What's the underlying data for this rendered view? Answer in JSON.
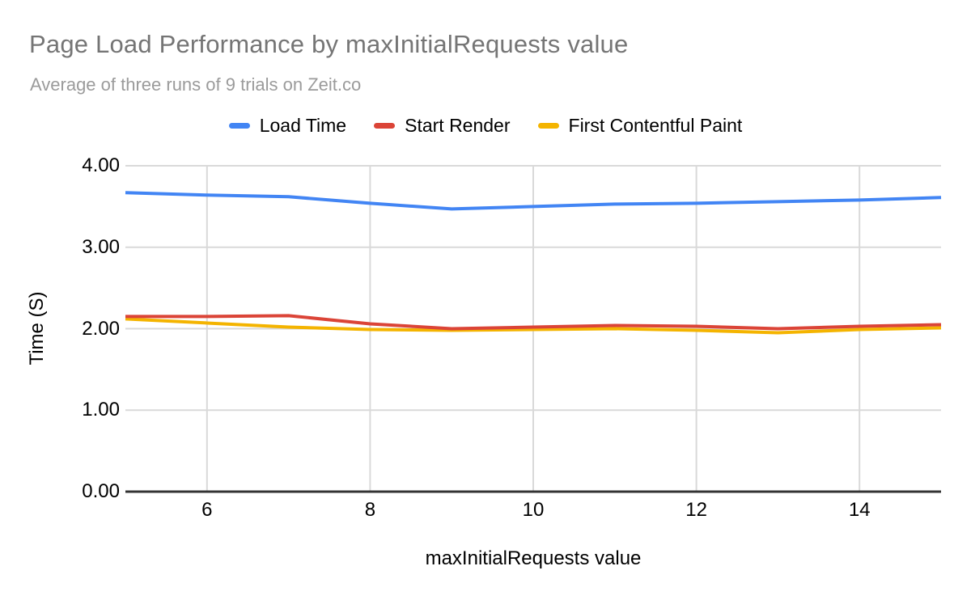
{
  "chart_data": {
    "type": "line",
    "title": "Page Load Performance by maxInitialRequests value",
    "subtitle": "Average of three runs of 9 trials on Zeit.co",
    "xlabel": "maxInitialRequests value",
    "ylabel": "Time (S)",
    "x": [
      5,
      6,
      7,
      8,
      9,
      10,
      11,
      12,
      13,
      14,
      15
    ],
    "xlim": [
      5,
      15
    ],
    "ylim": [
      0,
      4
    ],
    "x_tick_values": [
      6,
      8,
      10,
      12,
      14
    ],
    "x_tick_labels": [
      "6",
      "8",
      "10",
      "12",
      "14"
    ],
    "y_tick_values": [
      0,
      1,
      2,
      3,
      4
    ],
    "y_tick_labels": [
      "0.00",
      "1.00",
      "2.00",
      "3.00",
      "4.00"
    ],
    "grid": true,
    "legend_position": "top",
    "series": [
      {
        "name": "Load Time",
        "color": "#4285f4",
        "values": [
          3.67,
          3.64,
          3.62,
          3.54,
          3.47,
          3.5,
          3.53,
          3.54,
          3.56,
          3.58,
          3.61
        ]
      },
      {
        "name": "Start Render",
        "color": "#db4437",
        "values": [
          2.15,
          2.15,
          2.16,
          2.06,
          2.0,
          2.02,
          2.04,
          2.03,
          2.0,
          2.03,
          2.05
        ]
      },
      {
        "name": "First Contentful Paint",
        "color": "#f4b400",
        "values": [
          2.12,
          2.07,
          2.02,
          1.99,
          1.98,
          1.99,
          2.0,
          1.98,
          1.95,
          1.99,
          2.01
        ]
      }
    ],
    "colors": {
      "grid": "#d9d9d9",
      "axis": "#333333",
      "title": "#757575",
      "subtitle": "#9b9b9b",
      "tick_text": "#000000"
    }
  }
}
